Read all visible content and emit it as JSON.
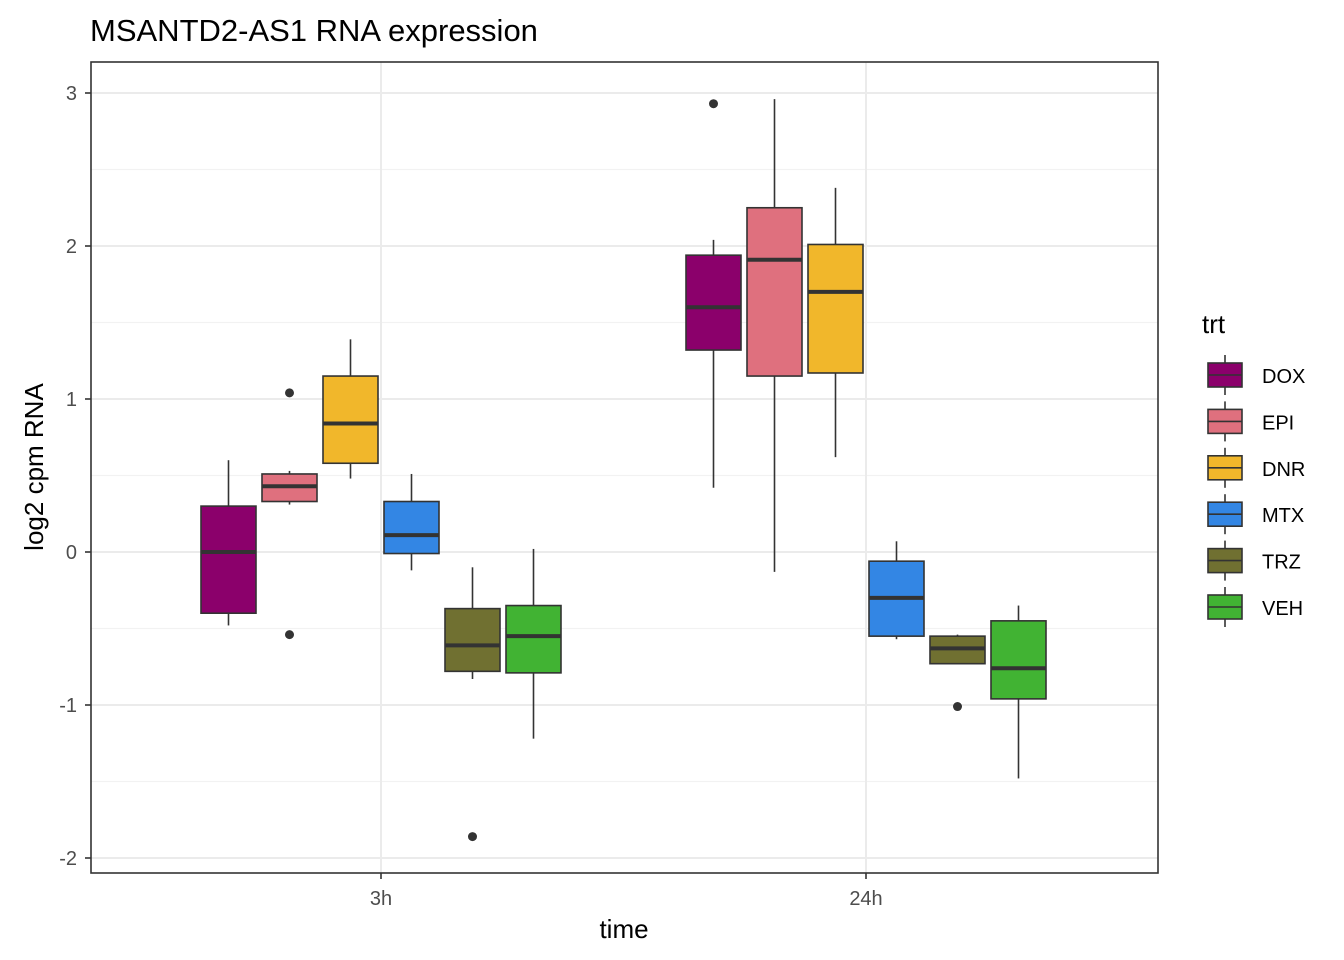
{
  "chart_data": {
    "type": "boxplot",
    "title": "MSANTD2-AS1  RNA expression",
    "xlabel": "time",
    "ylabel": "log2 cpm RNA",
    "ylim": [
      -2.1,
      3.15
    ],
    "yticks": [
      -2,
      -1,
      0,
      1,
      2,
      3
    ],
    "categories": [
      "3h",
      "24h"
    ],
    "grid": true,
    "legend": {
      "title": "trt",
      "position": "right",
      "entries": [
        {
          "name": "DOX",
          "color": "#8B006B"
        },
        {
          "name": "EPI",
          "color": "#DF707E"
        },
        {
          "name": "DNR",
          "color": "#F1B72B"
        },
        {
          "name": "MTX",
          "color": "#3386E4"
        },
        {
          "name": "TRZ",
          "color": "#707031"
        },
        {
          "name": "VEH",
          "color": "#41B333"
        }
      ]
    },
    "series": [
      {
        "name": "DOX",
        "color": "#8B006B",
        "boxes": [
          {
            "category": "3h",
            "whisker_low": -0.48,
            "q1": -0.4,
            "median": 0.0,
            "q3": 0.3,
            "whisker_high": 0.6,
            "outliers": []
          },
          {
            "category": "24h",
            "whisker_low": 0.42,
            "q1": 1.32,
            "median": 1.6,
            "q3": 1.94,
            "whisker_high": 2.04,
            "outliers": [
              2.93
            ]
          }
        ]
      },
      {
        "name": "EPI",
        "color": "#DF707E",
        "boxes": [
          {
            "category": "3h",
            "whisker_low": 0.31,
            "q1": 0.33,
            "median": 0.43,
            "q3": 0.51,
            "whisker_high": 0.53,
            "outliers": [
              1.04,
              -0.54
            ]
          },
          {
            "category": "24h",
            "whisker_low": -0.13,
            "q1": 1.15,
            "median": 1.91,
            "q3": 2.25,
            "whisker_high": 2.96,
            "outliers": []
          }
        ]
      },
      {
        "name": "DNR",
        "color": "#F1B72B",
        "boxes": [
          {
            "category": "3h",
            "whisker_low": 0.48,
            "q1": 0.58,
            "median": 0.84,
            "q3": 1.15,
            "whisker_high": 1.39,
            "outliers": []
          },
          {
            "category": "24h",
            "whisker_low": 0.62,
            "q1": 1.17,
            "median": 1.7,
            "q3": 2.01,
            "whisker_high": 2.38,
            "outliers": []
          }
        ]
      },
      {
        "name": "MTX",
        "color": "#3386E4",
        "boxes": [
          {
            "category": "3h",
            "whisker_low": -0.12,
            "q1": -0.01,
            "median": 0.11,
            "q3": 0.33,
            "whisker_high": 0.51,
            "outliers": []
          },
          {
            "category": "24h",
            "whisker_low": -0.57,
            "q1": -0.55,
            "median": -0.3,
            "q3": -0.06,
            "whisker_high": 0.07,
            "outliers": []
          }
        ]
      },
      {
        "name": "TRZ",
        "color": "#707031",
        "boxes": [
          {
            "category": "3h",
            "whisker_low": -0.83,
            "q1": -0.78,
            "median": -0.61,
            "q3": -0.37,
            "whisker_high": -0.1,
            "outliers": [
              -1.86
            ]
          },
          {
            "category": "24h",
            "whisker_low": -0.73,
            "q1": -0.73,
            "median": -0.63,
            "q3": -0.55,
            "whisker_high": -0.54,
            "outliers": [
              -1.01
            ]
          }
        ]
      },
      {
        "name": "VEH",
        "color": "#41B333",
        "boxes": [
          {
            "category": "3h",
            "whisker_low": -1.22,
            "q1": -0.79,
            "median": -0.55,
            "q3": -0.35,
            "whisker_high": 0.02,
            "outliers": []
          },
          {
            "category": "24h",
            "whisker_low": -1.48,
            "q1": -0.96,
            "median": -0.76,
            "q3": -0.45,
            "whisker_high": -0.35,
            "outliers": []
          }
        ]
      }
    ]
  }
}
